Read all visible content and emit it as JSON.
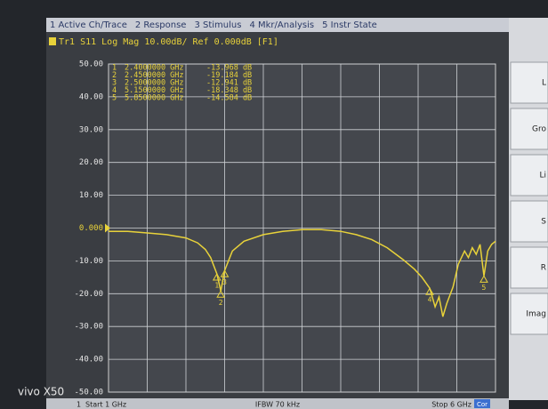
{
  "menu": [
    "1 Active Ch/Trace",
    "2 Response",
    "3 Stimulus",
    "4 Mkr/Analysis",
    "5 Instr State"
  ],
  "chart_data": {
    "type": "line",
    "title": "Tr1 S11 Log Mag 10.00dB/ Ref 0.000dB [F1]",
    "x": [
      1.0,
      1.25,
      1.5,
      1.75,
      2.0,
      2.15,
      2.25,
      2.32,
      2.4,
      2.45,
      2.5,
      2.6,
      2.75,
      3.0,
      3.25,
      3.5,
      3.75,
      4.0,
      4.2,
      4.4,
      4.6,
      4.8,
      4.95,
      5.05,
      5.15,
      5.22,
      5.27,
      5.32,
      5.37,
      5.45,
      5.52,
      5.6,
      5.65,
      5.7,
      5.75,
      5.8,
      5.85,
      5.9,
      5.95,
      6.0
    ],
    "values": [
      -1.0,
      -1.0,
      -1.5,
      -2.0,
      -3.0,
      -4.5,
      -6.5,
      -9.0,
      -13.968,
      -19.184,
      -12.941,
      -7.0,
      -4.0,
      -2.0,
      -1.0,
      -0.5,
      -0.5,
      -1.0,
      -2.0,
      -3.5,
      -6.0,
      -9.5,
      -12.5,
      -15.0,
      -18.348,
      -24.0,
      -21.0,
      -27.0,
      -23.0,
      -18.0,
      -11.0,
      -7.0,
      -9.0,
      -6.0,
      -8.0,
      -5.0,
      -14.584,
      -7.0,
      -5.0,
      -4.0
    ],
    "color": "#e8d23a",
    "xlim": [
      1,
      6
    ],
    "ylim": [
      -50,
      50
    ],
    "yticks": [
      {
        "value": 50,
        "label": "50.00"
      },
      {
        "value": 40,
        "label": "40.00"
      },
      {
        "value": 30,
        "label": "30.00"
      },
      {
        "value": 20,
        "label": "20.00"
      },
      {
        "value": 10,
        "label": "10.00"
      },
      {
        "value": 0,
        "label": "0.000"
      },
      {
        "value": -10,
        "label": "-10.00"
      },
      {
        "value": -20,
        "label": "-20.00"
      },
      {
        "value": -30,
        "label": "-30.00"
      },
      {
        "value": -40,
        "label": "-40.00"
      },
      {
        "value": -50,
        "label": "-50.00"
      }
    ],
    "grid": true,
    "markers": {
      "labels": [
        "1",
        "2",
        "3",
        "4",
        "5"
      ],
      "x": [
        2.4,
        2.45,
        2.5,
        5.15,
        5.85
      ],
      "x_labels": [
        "2.4000000 GHz",
        "2.4500000 GHz",
        "2.5000000 GHz",
        "5.1500000 GHz",
        "5.8500000 GHz"
      ],
      "values": [
        -13.968,
        -19.184,
        -12.941,
        -18.348,
        -14.584
      ],
      "value_labels": [
        "-13.968 dB",
        "-19.184 dB",
        "-12.941 dB",
        "-18.348 dB",
        "-14.584 dB"
      ]
    }
  },
  "status": {
    "channel": "1",
    "start": "Start 1 GHz",
    "ifbw": "IFBW 70 kHz",
    "stop": "Stop 6 GHz",
    "cor": "Cor"
  },
  "side_panel": [
    "L",
    "Gro",
    "Li",
    "S",
    "R",
    "Imag"
  ],
  "watermark": "vivo X50"
}
